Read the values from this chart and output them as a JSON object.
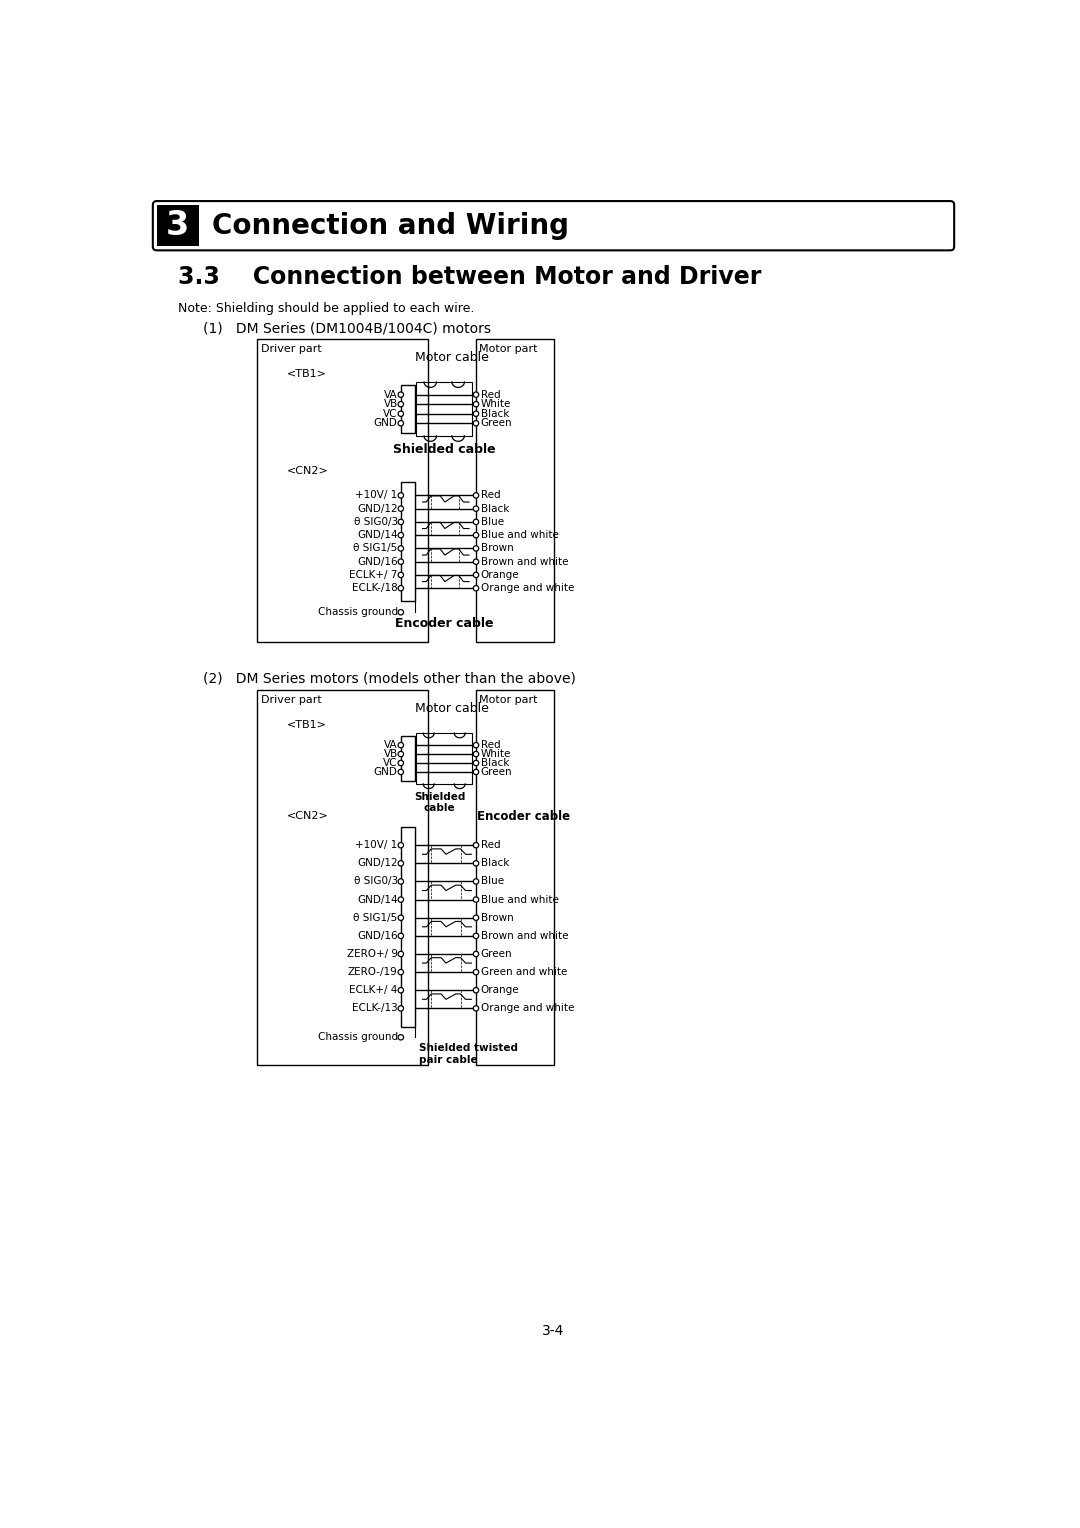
{
  "page_title": "3    Connection and Wiring",
  "section_title": "3.3    Connection between Motor and Driver",
  "note": "Note: Shielding should be applied to each wire.",
  "diagram1_title": "(1)   DM Series (DM1004B/1004C) motors",
  "diagram2_title": "(2)   DM Series motors (models other than the above)",
  "page_number": "3-4",
  "diag1": {
    "driver_label": "Driver part",
    "motor_label": "Motor part",
    "tb1_label": "<TB1>",
    "cn2_label": "<CN2>",
    "motor_cable_label": "Motor cable",
    "shielded_cable_label": "Shielded cable",
    "encoder_cable_label": "Encoder cable",
    "tb1_pins": [
      "VA",
      "VB",
      "VC",
      "GND"
    ],
    "tb1_colors": [
      "Red",
      "White",
      "Black",
      "Green"
    ],
    "cn2_pins": [
      "+10V/ 1",
      "GND/12",
      "θ SIG0/3",
      "GND/14",
      "θ SIG1/5",
      "GND/16",
      "ECLK+/ 7",
      "ECLK-/18"
    ],
    "cn2_colors": [
      "Red",
      "Black",
      "Blue",
      "Blue and white",
      "Brown",
      "Brown and white",
      "Orange",
      "Orange and white"
    ],
    "chassis_ground": "Chassis ground"
  },
  "diag2": {
    "driver_label": "Driver part",
    "motor_label": "Motor part",
    "tb1_label": "<TB1>",
    "cn2_label": "<CN2>",
    "motor_cable_label": "Motor cable",
    "shielded_cable_label": "Shielded\ncable",
    "encoder_cable_label": "Encoder cable",
    "shielded_twisted_label": "Shielded twisted\npair cable",
    "tb1_pins": [
      "VA",
      "VB",
      "VC",
      "GND"
    ],
    "tb1_colors": [
      "Red",
      "White",
      "Black",
      "Green"
    ],
    "cn2_pins": [
      "+10V/ 1",
      "GND/12",
      "θ SIG0/3",
      "GND/14",
      "θ SIG1/5",
      "GND/16",
      "ZERO+/ 9",
      "ZERO-/19",
      "ECLK+/ 4",
      "ECLK-/13"
    ],
    "cn2_colors": [
      "Red",
      "Black",
      "Blue",
      "Blue and white",
      "Brown",
      "Brown and white",
      "Green",
      "Green and white",
      "Orange",
      "Orange and white"
    ],
    "chassis_ground": "Chassis ground"
  }
}
